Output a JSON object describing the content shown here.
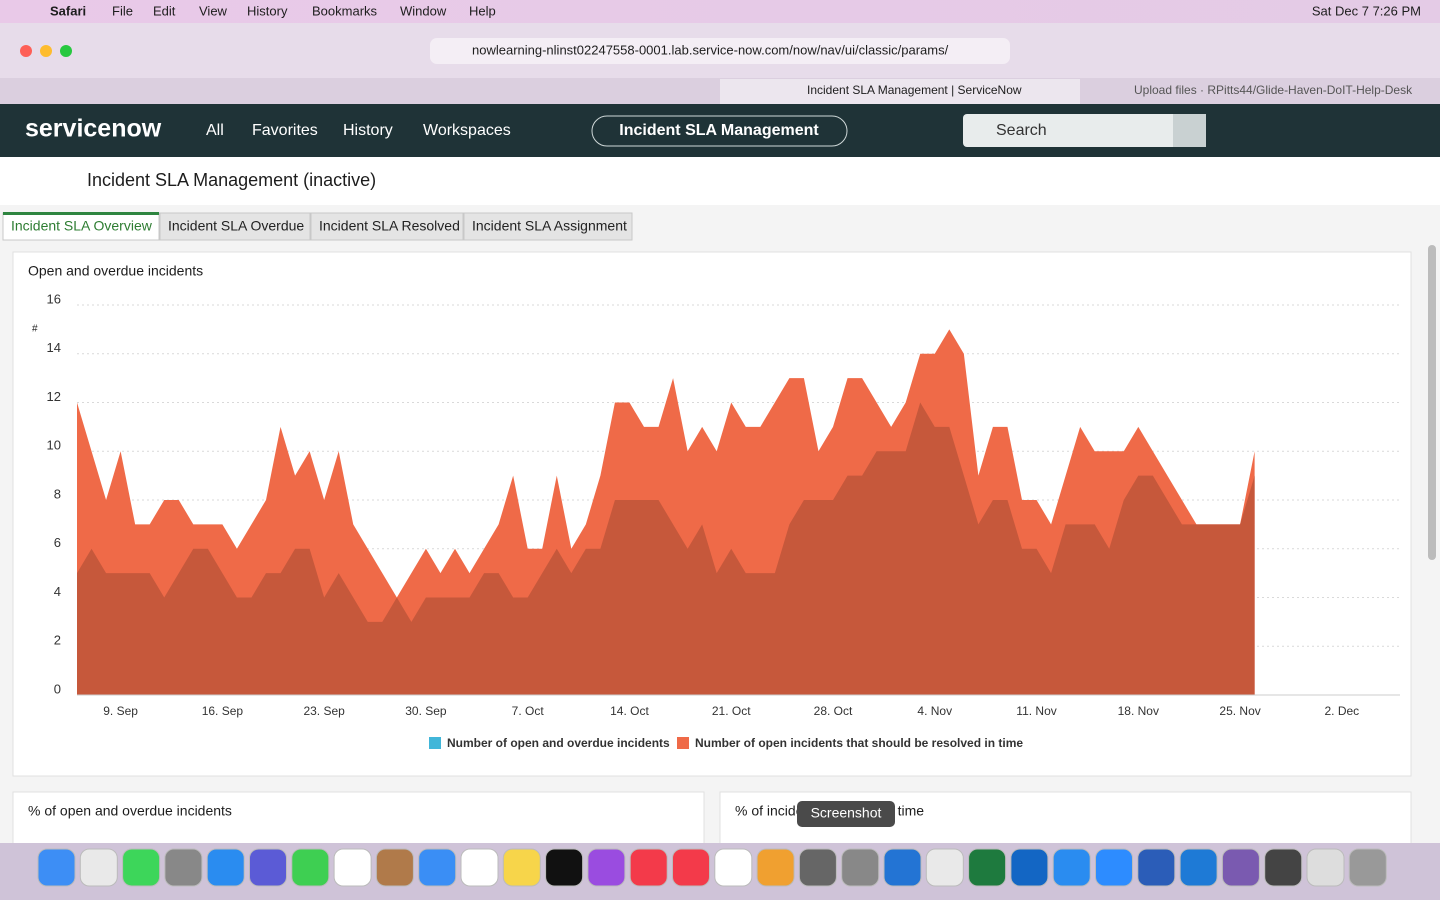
{
  "menu_bar": {
    "app": "Safari",
    "items": [
      "File",
      "Edit",
      "View",
      "History",
      "Bookmarks",
      "Window",
      "Help"
    ],
    "clock": "Sat Dec 7  7:26 PM"
  },
  "browser": {
    "url": "nowlearning-nlinst02247558-0001.lab.service-now.com/now/nav/ui/classic/params/",
    "tabs": [
      "Incident SLA Management | ServiceNow",
      "Upload files · RPitts44/Glide-Haven-DoIT-Help-Desk"
    ]
  },
  "header": {
    "logo": "servicenow",
    "nav": [
      "All",
      "Favorites",
      "History",
      "Workspaces"
    ],
    "context": "Incident SLA Management",
    "search": "Search"
  },
  "page": {
    "title": "Incident SLA Management (inactive)",
    "tabs": [
      "Incident SLA Overview",
      "Incident SLA Overdue",
      "Incident SLA Resolved",
      "Incident SLA Assignment"
    ]
  },
  "chart_data": {
    "type": "area",
    "title": "Open and overdue incidents",
    "y_label": "#",
    "categories": [
      null,
      null,
      null,
      "9. Sep",
      null,
      null,
      null,
      null,
      null,
      null,
      "16. Sep",
      null,
      null,
      null,
      null,
      null,
      null,
      "23. Sep",
      null,
      null,
      null,
      null,
      null,
      null,
      "30. Sep",
      null,
      null,
      null,
      null,
      null,
      null,
      "7. Oct",
      null,
      null,
      null,
      null,
      null,
      null,
      "14. Oct",
      null,
      null,
      null,
      null,
      null,
      null,
      "21. Oct",
      null,
      null,
      null,
      null,
      null,
      null,
      "28. Oct",
      null,
      null,
      null,
      null,
      null,
      null,
      "4. Nov",
      null,
      null,
      null,
      null,
      null,
      null,
      "11. Nov",
      null,
      null,
      null,
      null,
      null,
      null,
      "18. Nov",
      null,
      null,
      null,
      null,
      null,
      null,
      "25. Nov",
      null,
      null,
      null,
      null,
      null,
      null,
      "2. Dec",
      null,
      null,
      null
    ],
    "series": [
      {
        "name": "Number of open and overdue incidents",
        "color": "#41b6d9",
        "values": [
          5,
          6,
          5,
          5,
          5,
          5,
          4,
          5,
          6,
          6,
          5,
          4,
          4,
          5,
          5,
          6,
          6,
          4,
          5,
          4,
          3,
          3,
          4,
          3,
          4,
          4,
          4,
          4,
          5,
          5,
          4,
          4,
          5,
          6,
          5,
          6,
          6,
          8,
          8,
          8,
          8,
          7,
          6,
          7,
          5,
          6,
          5,
          5,
          5,
          7,
          8,
          8,
          8,
          9,
          9,
          10,
          10,
          10,
          12,
          11,
          11,
          9,
          7,
          8,
          8,
          6,
          6,
          5,
          7,
          7,
          7,
          6,
          8,
          9,
          9,
          8,
          7,
          7,
          7,
          7,
          7,
          9,
          null,
          null,
          null,
          null,
          null,
          null,
          null,
          null,
          null
        ]
      },
      {
        "name": "Number of open incidents that should be resolved in time",
        "color": "#ef6a48",
        "values": [
          12,
          10,
          8,
          10,
          7,
          7,
          8,
          8,
          7,
          7,
          7,
          6,
          7,
          8,
          11,
          9,
          10,
          8,
          10,
          7,
          6,
          5,
          4,
          5,
          6,
          5,
          6,
          5,
          6,
          7,
          9,
          6,
          6,
          9,
          6,
          7,
          9,
          12,
          12,
          11,
          11,
          13,
          10,
          11,
          10,
          12,
          11,
          11,
          12,
          13,
          13,
          10,
          11,
          13,
          13,
          12,
          11,
          12,
          14,
          14,
          15,
          14,
          9,
          11,
          11,
          8,
          8,
          7,
          9,
          11,
          10,
          10,
          10,
          11,
          10,
          9,
          8,
          7,
          7,
          7,
          7,
          10,
          null,
          null,
          null,
          null,
          null,
          null,
          null,
          null,
          null
        ]
      }
    ],
    "ylim": [
      0,
      16
    ],
    "yticks": [
      0,
      2,
      4,
      6,
      8,
      10,
      12,
      14,
      16
    ],
    "grid": true,
    "legend": "bottom"
  },
  "cards": [
    "% of open and overdue incidents",
    "% of incidents resolved in time"
  ],
  "tooltip": "Screenshot"
}
